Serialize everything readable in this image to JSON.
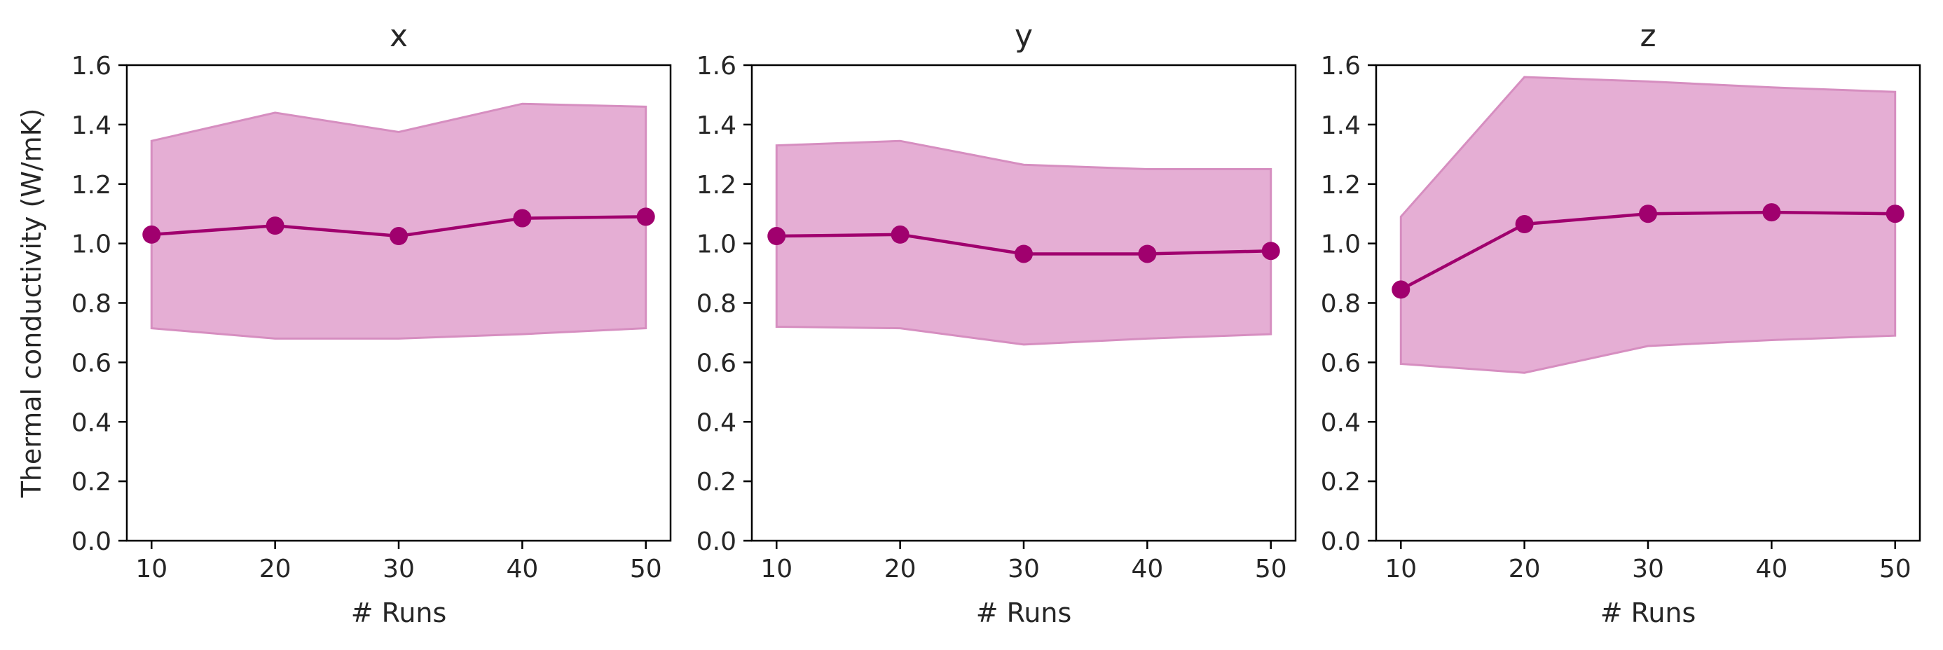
{
  "colors": {
    "line": "#a0006e",
    "band_fill": "#e5aed4",
    "band_edge": "#d68ec0",
    "axis": "#000000"
  },
  "chart_data": [
    {
      "type": "line",
      "title": "x",
      "xlabel": "# Runs",
      "ylabel": "Thermal conductivity (W/mK)",
      "xticks": [
        10,
        20,
        30,
        40,
        50
      ],
      "yticks": [
        0.0,
        0.2,
        0.4,
        0.6,
        0.8,
        1.0,
        1.2,
        1.4,
        1.6
      ],
      "ytick_labels": [
        "0.0",
        "0.2",
        "0.4",
        "0.6",
        "0.8",
        "1.0",
        "1.2",
        "1.4",
        "1.6"
      ],
      "xlim": [
        8,
        52
      ],
      "ylim": [
        0,
        1.6
      ],
      "x": [
        10,
        20,
        30,
        40,
        50
      ],
      "y": [
        1.03,
        1.06,
        1.025,
        1.085,
        1.09
      ],
      "band_upper": [
        1.345,
        1.44,
        1.375,
        1.47,
        1.46
      ],
      "band_lower": [
        0.715,
        0.68,
        0.68,
        0.695,
        0.715
      ]
    },
    {
      "type": "line",
      "title": "y",
      "xlabel": "# Runs",
      "ylabel": "",
      "xticks": [
        10,
        20,
        30,
        40,
        50
      ],
      "yticks": [
        0.0,
        0.2,
        0.4,
        0.6,
        0.8,
        1.0,
        1.2,
        1.4,
        1.6
      ],
      "ytick_labels": [
        "0.0",
        "0.2",
        "0.4",
        "0.6",
        "0.8",
        "1.0",
        "1.2",
        "1.4",
        "1.6"
      ],
      "xlim": [
        8,
        52
      ],
      "ylim": [
        0,
        1.6
      ],
      "x": [
        10,
        20,
        30,
        40,
        50
      ],
      "y": [
        1.025,
        1.03,
        0.965,
        0.965,
        0.975
      ],
      "band_upper": [
        1.33,
        1.345,
        1.265,
        1.25,
        1.25
      ],
      "band_lower": [
        0.72,
        0.715,
        0.66,
        0.68,
        0.695
      ]
    },
    {
      "type": "line",
      "title": "z",
      "xlabel": "# Runs",
      "ylabel": "",
      "xticks": [
        10,
        20,
        30,
        40,
        50
      ],
      "yticks": [
        0.0,
        0.2,
        0.4,
        0.6,
        0.8,
        1.0,
        1.2,
        1.4,
        1.6
      ],
      "ytick_labels": [
        "0.0",
        "0.2",
        "0.4",
        "0.6",
        "0.8",
        "1.0",
        "1.2",
        "1.4",
        "1.6"
      ],
      "xlim": [
        8,
        52
      ],
      "ylim": [
        0,
        1.6
      ],
      "x": [
        10,
        20,
        30,
        40,
        50
      ],
      "y": [
        0.845,
        1.065,
        1.1,
        1.105,
        1.1
      ],
      "band_upper": [
        1.09,
        1.56,
        1.545,
        1.525,
        1.51
      ],
      "band_lower": [
        0.595,
        0.565,
        0.655,
        0.675,
        0.69
      ]
    }
  ]
}
